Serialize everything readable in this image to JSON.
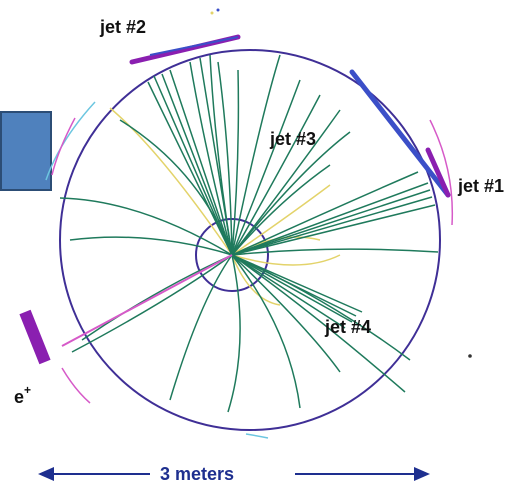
{
  "labels": {
    "jet1": "jet #1",
    "jet2": "jet #2",
    "jet3": "jet #3",
    "jet4": "jet #4",
    "positron_base": "e",
    "positron_sup": "+",
    "scale": "3 meters"
  },
  "colors": {
    "detector_circle": "#3f2f96",
    "tracks": "#1f7a5c",
    "soft_tracks": "#e3d36a",
    "calorimeter_bar": "#8a1fb0",
    "calorimeter_blue": "#3b4fc8",
    "arc_pink": "#d65ac8",
    "arc_cyan": "#6cc6e0",
    "scale_arrow": "#1e2f8f",
    "box_fill": "#4f81bd",
    "box_border": "#2c4d75"
  }
}
